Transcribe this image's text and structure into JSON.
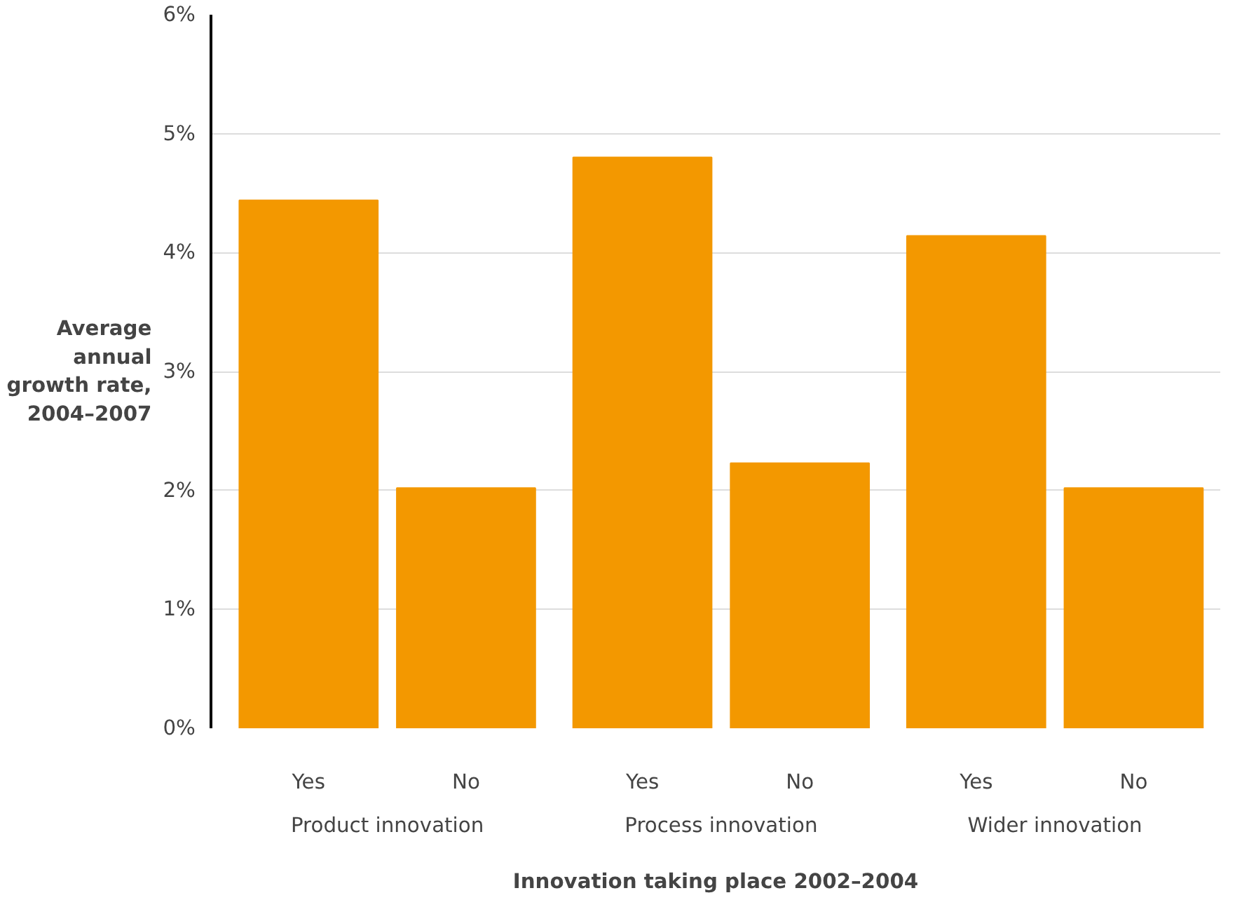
{
  "chart_data": {
    "type": "bar",
    "xlabel": "Innovation taking place 2002–2004",
    "ylabel": "Average annual growth rate, 2004–2007",
    "categories": [
      "Yes",
      "No",
      "Yes",
      "No",
      "Yes",
      "No"
    ],
    "values": [
      4.44,
      2.02,
      4.8,
      2.23,
      4.14,
      2.02
    ],
    "color": "#f39800",
    "annotations": [
      "Product innovation",
      "Process innovation",
      "Wider innovation"
    ],
    "ylim": [
      0,
      6
    ],
    "yticks": [
      {
        "value": 0,
        "label": "0%"
      },
      {
        "value": 1,
        "label": "1%"
      },
      {
        "value": 2,
        "label": "2%"
      },
      {
        "value": 3,
        "label": "3%"
      },
      {
        "value": 4,
        "label": "4%"
      },
      {
        "value": 5,
        "label": "5%"
      },
      {
        "value": 6,
        "label": "6%"
      }
    ],
    "grid": "y"
  }
}
